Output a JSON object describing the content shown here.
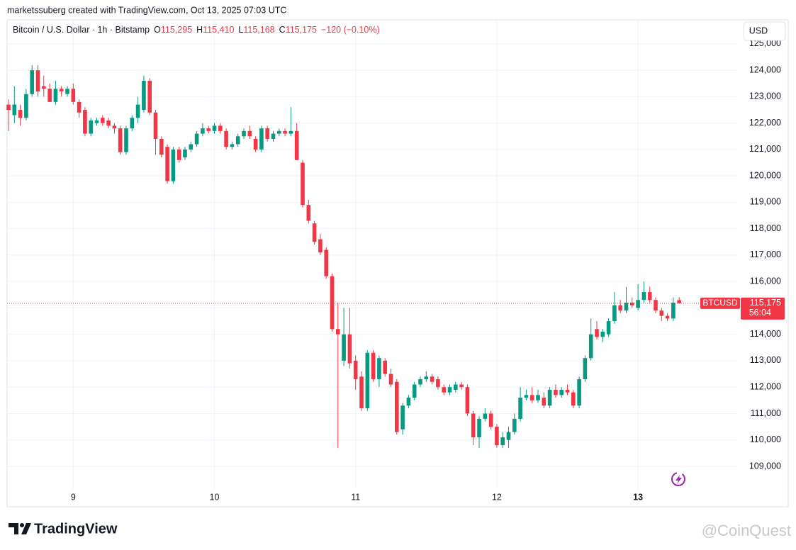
{
  "header": {
    "credit": "marketssuberg created with TradingView.com, Oct 13, 2025 07:03 UTC",
    "symbol_title": "Bitcoin / U.S. Dollar · 1h · Bitstamp",
    "ohlc": [
      {
        "key": "O",
        "value": "115,295"
      },
      {
        "key": "H",
        "value": "115,410"
      },
      {
        "key": "L",
        "value": "115,168"
      },
      {
        "key": "C",
        "value": "115,175"
      }
    ],
    "change": "−120 (−0.10%)",
    "currency": "USD"
  },
  "price_tag": {
    "symbol": "BTCUSD",
    "price": "115,175",
    "countdown": "56:04"
  },
  "logo": "TradingView",
  "watermark": "@CoinQuest",
  "chart_data": {
    "type": "candlestick",
    "up_color": "#089981",
    "down_color": "#f23645",
    "last_line_color": "#f23645",
    "grid": true,
    "categories": [
      null,
      null,
      null,
      null,
      null,
      null,
      null,
      null,
      null,
      null,
      null,
      "9",
      null,
      null,
      null,
      null,
      null,
      null,
      null,
      null,
      null,
      null,
      null,
      null,
      null,
      null,
      null,
      null,
      null,
      null,
      null,
      null,
      null,
      null,
      null,
      "10",
      null,
      null,
      null,
      null,
      null,
      null,
      null,
      null,
      null,
      null,
      null,
      null,
      null,
      null,
      null,
      null,
      null,
      null,
      null,
      null,
      null,
      null,
      null,
      "11",
      null,
      null,
      null,
      null,
      null,
      null,
      null,
      null,
      null,
      null,
      null,
      null,
      null,
      null,
      null,
      null,
      null,
      null,
      null,
      null,
      null,
      null,
      null,
      "12",
      null,
      null,
      null,
      null,
      null,
      null,
      null,
      null,
      null,
      null,
      null,
      null,
      null,
      null,
      null,
      null,
      null,
      null,
      null,
      null,
      null,
      null,
      null,
      "13",
      null,
      null,
      null,
      null,
      null,
      null,
      null
    ],
    "open": [
      122700,
      122300,
      122500,
      122200,
      123100,
      124000,
      123400,
      123300,
      122800,
      123300,
      123100,
      123300,
      122800,
      122500,
      121600,
      122000,
      122200,
      122100,
      121900,
      121800,
      120900,
      121800,
      122200,
      122500,
      123600,
      122400,
      121400,
      121100,
      119800,
      121000,
      120700,
      121000,
      121200,
      121600,
      121800,
      121700,
      121900,
      121700,
      121100,
      121200,
      121500,
      121700,
      121400,
      121000,
      121800,
      121400,
      121600,
      121700,
      121600,
      121700,
      120500,
      118900,
      118200,
      117600,
      117200,
      116200,
      114200,
      113000,
      114000,
      113000,
      112400,
      111200,
      113300,
      112300,
      113000,
      112500,
      112200,
      110400,
      111300,
      111600,
      112100,
      112300,
      112400,
      112300,
      112000,
      111800,
      111900,
      112100,
      112000,
      111000,
      110100,
      110800,
      111000,
      110500,
      109800,
      110000,
      110300,
      110800,
      111600,
      111700,
      111500,
      111600,
      111300,
      111900,
      111700,
      111900,
      111800,
      111300,
      112300,
      113100,
      114200,
      113900,
      114000,
      114500,
      115100,
      114900,
      115200,
      115000,
      115300,
      115600,
      115300,
      114900,
      114700,
      114600,
      115295
    ],
    "high": [
      122900,
      123400,
      122700,
      123300,
      124200,
      124200,
      123800,
      123500,
      123600,
      123400,
      123400,
      123500,
      122900,
      122600,
      122200,
      122200,
      122300,
      122200,
      122000,
      121900,
      121900,
      122300,
      123000,
      123800,
      123700,
      122500,
      121500,
      121200,
      121100,
      121100,
      121100,
      121300,
      121700,
      122000,
      121900,
      122000,
      122000,
      121800,
      121300,
      121600,
      121800,
      121900,
      121500,
      121900,
      121900,
      121700,
      121800,
      121800,
      122600,
      122000,
      120600,
      119100,
      118300,
      117800,
      117300,
      116300,
      115200,
      115000,
      115000,
      113200,
      112600,
      113400,
      113400,
      113200,
      113100,
      112700,
      112300,
      111400,
      111700,
      112200,
      112400,
      112600,
      112500,
      112400,
      112100,
      112100,
      112200,
      112200,
      112100,
      111100,
      110900,
      111200,
      111100,
      110600,
      110300,
      110500,
      111000,
      112000,
      111900,
      112000,
      111900,
      111800,
      112000,
      112100,
      112000,
      112100,
      111900,
      112400,
      113200,
      114600,
      114500,
      114200,
      114600,
      115600,
      115300,
      115800,
      115400,
      115900,
      116000,
      115800,
      115400,
      115000,
      114800,
      115400,
      115410
    ],
    "low": [
      121700,
      122000,
      121900,
      122100,
      123000,
      123000,
      123000,
      122800,
      122700,
      123000,
      123000,
      122700,
      122200,
      121500,
      121500,
      121900,
      121900,
      121800,
      121600,
      120800,
      120800,
      121700,
      122000,
      122400,
      122300,
      120800,
      120700,
      119700,
      119700,
      120500,
      120600,
      120900,
      121100,
      121500,
      121600,
      121600,
      121600,
      121000,
      121000,
      121100,
      121400,
      121400,
      120900,
      120900,
      121300,
      121300,
      121500,
      121500,
      121500,
      120600,
      118800,
      118200,
      117400,
      117000,
      116100,
      114100,
      109700,
      112800,
      112700,
      111900,
      111100,
      111100,
      112200,
      112000,
      112400,
      112000,
      110200,
      110200,
      111200,
      111500,
      112000,
      112200,
      112100,
      111900,
      111700,
      111700,
      111800,
      111900,
      110900,
      109800,
      109700,
      110700,
      110400,
      109700,
      109700,
      109700,
      110200,
      110700,
      111500,
      111400,
      111400,
      111200,
      111200,
      111600,
      111600,
      111700,
      111200,
      111200,
      112200,
      113000,
      113800,
      113700,
      113900,
      114400,
      114800,
      114800,
      115000,
      114900,
      115200,
      115200,
      114800,
      114500,
      114500,
      114500,
      115168
    ],
    "close": [
      122500,
      122700,
      122200,
      123100,
      124000,
      123200,
      123300,
      122800,
      123300,
      123200,
      123300,
      122800,
      122400,
      121600,
      122100,
      122100,
      122000,
      121900,
      121800,
      120900,
      121800,
      122200,
      122700,
      123600,
      122400,
      121400,
      120800,
      119800,
      121000,
      120600,
      121000,
      121200,
      121600,
      121800,
      121700,
      121900,
      121700,
      121100,
      121200,
      121500,
      121700,
      121500,
      121000,
      121800,
      121400,
      121600,
      121700,
      121600,
      121700,
      120600,
      118900,
      118300,
      117500,
      117100,
      116200,
      114200,
      114000,
      114000,
      112900,
      112300,
      111200,
      113300,
      112300,
      113100,
      112500,
      112100,
      110300,
      111300,
      111600,
      112100,
      112300,
      112400,
      112200,
      112000,
      111800,
      112000,
      112100,
      112000,
      111000,
      110100,
      110800,
      111000,
      110500,
      109800,
      110100,
      110300,
      110800,
      111600,
      111700,
      111500,
      111700,
      111300,
      111900,
      111700,
      111900,
      111800,
      111300,
      112300,
      113100,
      114000,
      113900,
      114100,
      114500,
      115100,
      114900,
      115200,
      115100,
      115300,
      115600,
      115300,
      114900,
      114700,
      114600,
      115200,
      115175
    ],
    "ylim": [
      108140,
      125910
    ],
    "yticks": [
      {
        "value": 109000,
        "label": "109,000"
      },
      {
        "value": 110000,
        "label": "110,000"
      },
      {
        "value": 111000,
        "label": "111,000"
      },
      {
        "value": 112000,
        "label": "112,000"
      },
      {
        "value": 113000,
        "label": "113,000"
      },
      {
        "value": 114000,
        "label": "114,000"
      },
      {
        "value": 115000,
        "label": "115,000"
      },
      {
        "value": 116000,
        "label": "116,000"
      },
      {
        "value": 117000,
        "label": "117,000"
      },
      {
        "value": 118000,
        "label": "118,000"
      },
      {
        "value": 119000,
        "label": "119,000"
      },
      {
        "value": 120000,
        "label": "120,000"
      },
      {
        "value": 121000,
        "label": "121,000"
      },
      {
        "value": 122000,
        "label": "122,000"
      },
      {
        "value": 123000,
        "label": "123,000"
      },
      {
        "value": 124000,
        "label": "124,000"
      },
      {
        "value": 125000,
        "label": "125,000"
      }
    ]
  }
}
